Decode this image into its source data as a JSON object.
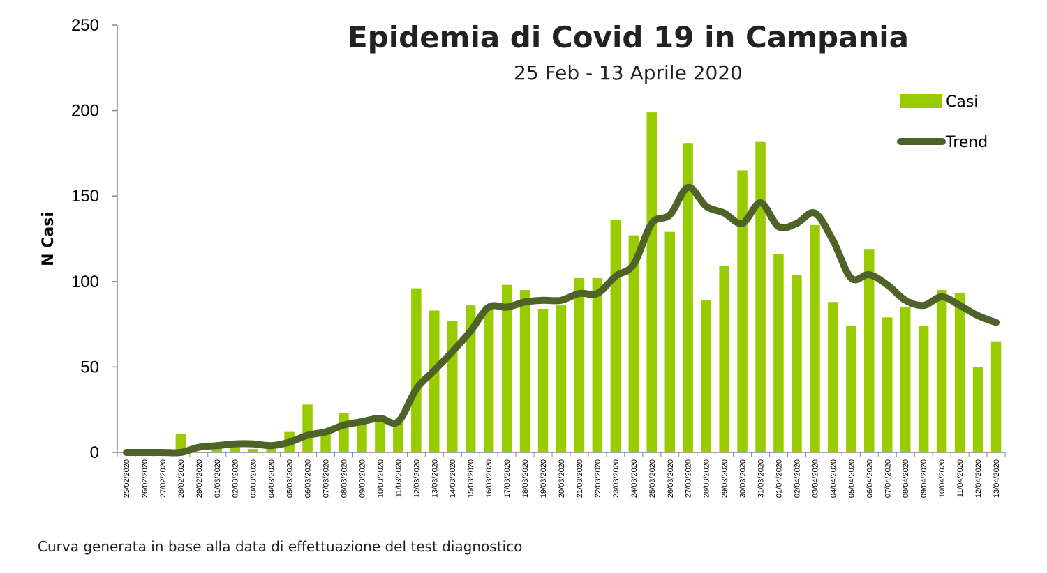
{
  "chart_data": {
    "type": "bar",
    "title": "Epidemia di Covid 19 in Campania",
    "subtitle": "25 Feb - 13 Aprile 2020",
    "xlabel": "",
    "ylabel": "N Casi",
    "ylim": [
      0,
      250
    ],
    "yticks": [
      0,
      50,
      100,
      150,
      200,
      250
    ],
    "grid": false,
    "legend": "top-right",
    "categories": [
      "25/02/2020",
      "26/02/2020",
      "27/02/2020",
      "28/02/2020",
      "29/02/2020",
      "01/03/2020",
      "02/03/2020",
      "03/03/2020",
      "04/03/2020",
      "05/03/2020",
      "06/03/2020",
      "07/03/2020",
      "08/03/2020",
      "09/03/2020",
      "10/03/2020",
      "11/03/2020",
      "12/03/2020",
      "13/03/2020",
      "14/03/2020",
      "15/03/2020",
      "16/03/2020",
      "17/03/2020",
      "18/03/2020",
      "19/03/2020",
      "20/03/2020",
      "21/03/2020",
      "22/03/2020",
      "23/03/2020",
      "24/03/2020",
      "25/03/2020",
      "26/03/2020",
      "27/03/2020",
      "28/03/2020",
      "29/03/2020",
      "30/03/2020",
      "31/03/2020",
      "01/04/2020",
      "02/04/2020",
      "03/04/2020",
      "04/04/2020",
      "05/04/2020",
      "06/04/2020",
      "07/04/2020",
      "08/04/2020",
      "09/04/2020",
      "10/04/2020",
      "11/04/2020",
      "12/04/2020",
      "13/04/2020"
    ],
    "series": [
      {
        "name": "Casi",
        "type": "bar",
        "color": "#99cc00",
        "values": [
          0,
          0,
          0,
          11,
          0,
          3,
          3,
          2,
          2,
          12,
          28,
          13,
          23,
          17,
          20,
          19,
          96,
          83,
          77,
          86,
          86,
          98,
          95,
          84,
          86,
          102,
          102,
          136,
          127,
          199,
          129,
          181,
          89,
          109,
          165,
          182,
          116,
          104,
          133,
          88,
          74,
          119,
          79,
          85,
          74,
          95,
          93,
          50,
          65
        ]
      },
      {
        "name": "Trend",
        "type": "line",
        "color": "#4f6228",
        "values": [
          0,
          0,
          0,
          0,
          3,
          4,
          5,
          5,
          4,
          6,
          10,
          12,
          16,
          18,
          20,
          18,
          37,
          48,
          59,
          71,
          85,
          85,
          88,
          89,
          89,
          93,
          93,
          103,
          110,
          134,
          139,
          155,
          144,
          140,
          134,
          146,
          132,
          134,
          140,
          124,
          102,
          104,
          98,
          89,
          86,
          91,
          86,
          80,
          76
        ]
      }
    ]
  },
  "footnote": "Curva generata in base alla data di effettuazione del test diagnostico"
}
